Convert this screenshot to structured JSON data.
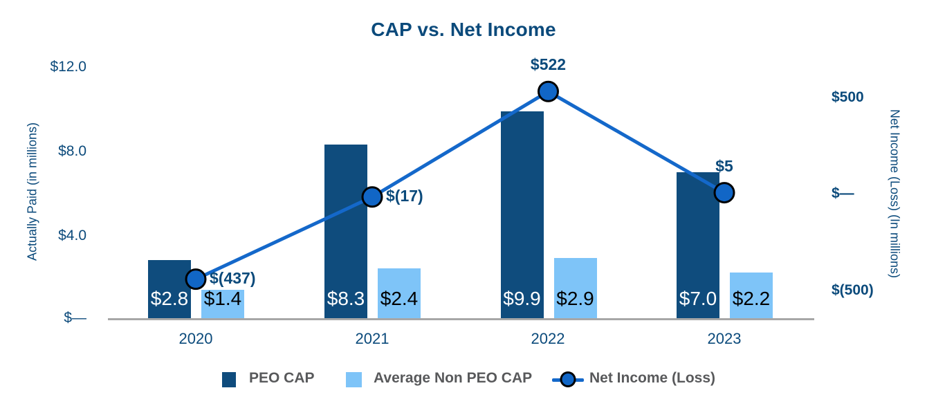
{
  "title": "CAP vs. Net Income",
  "axes": {
    "left": {
      "title": "Actually Paid (in millions)",
      "ticks": [
        "$12.0",
        "$8.0",
        "$4.0",
        "$—"
      ]
    },
    "right": {
      "title": "Net Income (Loss) (In millions)",
      "ticks": [
        "$500",
        "$—",
        "$(500)"
      ]
    },
    "x": {
      "ticks": [
        "2020",
        "2021",
        "2022",
        "2023"
      ]
    }
  },
  "legend": {
    "items": [
      {
        "label": "PEO CAP",
        "swatch": "square-dark"
      },
      {
        "label": "Average Non PEO CAP",
        "swatch": "square-light"
      },
      {
        "label": "Net Income (Loss)",
        "swatch": "line-marker"
      }
    ]
  },
  "colors": {
    "navy": "#0B4A7B",
    "bar_dark": "#0F4C7D",
    "bar_light": "#7EC4F8",
    "line": "#1468CA",
    "marker_fill": "#1166C6",
    "marker_stroke": "#000000",
    "legend_text": "#58595B",
    "axis_line": "#A7A7A7",
    "bar_label_on_dark": "#FFFFFF",
    "bar_label_on_light": "#000000"
  },
  "chart_data": {
    "type": "combo",
    "title": "CAP vs. Net Income",
    "categories": [
      "2020",
      "2021",
      "2022",
      "2023"
    ],
    "series": [
      {
        "name": "PEO CAP",
        "type": "bar",
        "axis": "left",
        "values": [
          2.8,
          8.3,
          9.9,
          7.0
        ],
        "labels": [
          "$2.8",
          "$8.3",
          "$9.9",
          "$7.0"
        ]
      },
      {
        "name": "Average Non PEO CAP",
        "type": "bar",
        "axis": "left",
        "values": [
          1.4,
          2.4,
          2.9,
          2.2
        ],
        "labels": [
          "$1.4",
          "$2.4",
          "$2.9",
          "$2.2"
        ]
      },
      {
        "name": "Net Income (Loss)",
        "type": "line",
        "axis": "right",
        "values": [
          -437,
          -17,
          522,
          5
        ],
        "labels": [
          "$(437)",
          "$(17)",
          "$522",
          "$5"
        ]
      }
    ],
    "left_axis": {
      "label": "Actually Paid (in millions)",
      "range": [
        0,
        12
      ],
      "tick_interval": 4,
      "tick_format": "$#.0"
    },
    "right_axis": {
      "label": "Net Income (Loss) (In millions)",
      "ticks": [
        500,
        0,
        -500
      ]
    },
    "grid": false,
    "legend_position": "bottom"
  }
}
